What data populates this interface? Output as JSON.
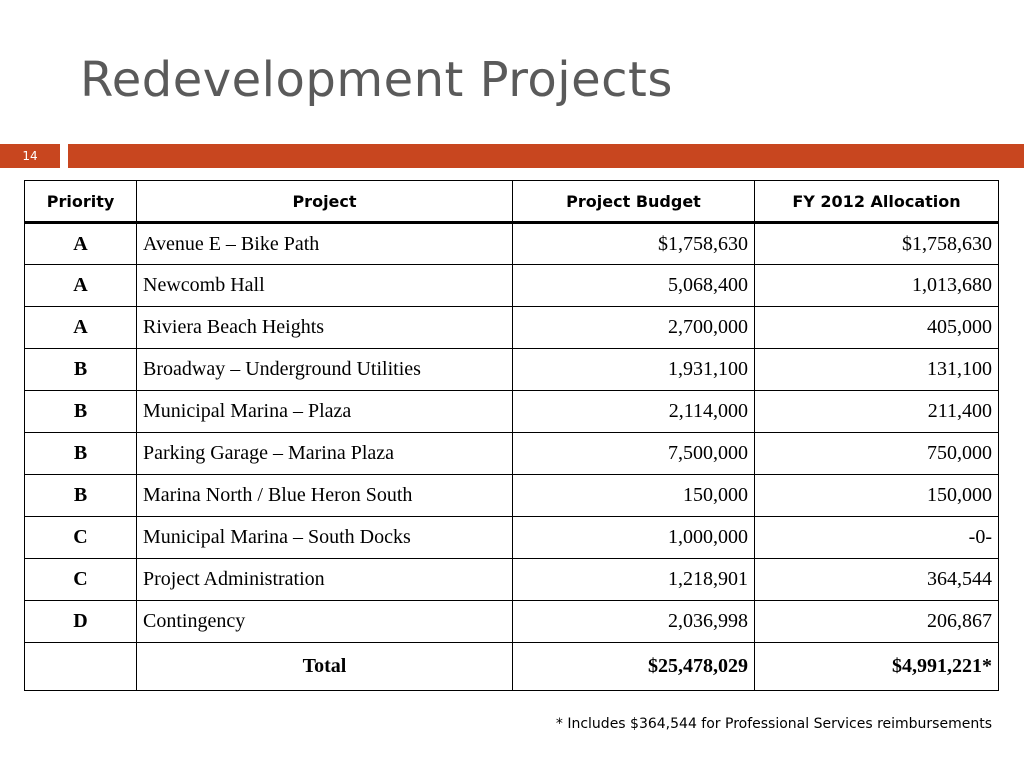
{
  "slide": {
    "title": "Redevelopment Projects",
    "number": "14",
    "accent_color": "#c8461f"
  },
  "table": {
    "headers": {
      "priority": "Priority",
      "project": "Project",
      "budget": "Project Budget",
      "allocation": "FY 2012 Allocation"
    },
    "rows": [
      {
        "priority": "A",
        "project": "Avenue E – Bike Path",
        "budget": "$1,758,630",
        "allocation": "$1,758,630"
      },
      {
        "priority": "A",
        "project": "Newcomb Hall",
        "budget": "5,068,400",
        "allocation": "1,013,680"
      },
      {
        "priority": "A",
        "project": "Riviera Beach Heights",
        "budget": "2,700,000",
        "allocation": "405,000"
      },
      {
        "priority": "B",
        "project": "Broadway – Underground Utilities",
        "budget": "1,931,100",
        "allocation": "131,100"
      },
      {
        "priority": "B",
        "project": "Municipal Marina – Plaza",
        "budget": "2,114,000",
        "allocation": "211,400"
      },
      {
        "priority": "B",
        "project": "Parking Garage – Marina Plaza",
        "budget": "7,500,000",
        "allocation": "750,000"
      },
      {
        "priority": "B",
        "project": "Marina North / Blue Heron South",
        "budget": "150,000",
        "allocation": "150,000"
      },
      {
        "priority": "C",
        "project": "Municipal Marina – South Docks",
        "budget": "1,000,000",
        "allocation": "-0-"
      },
      {
        "priority": "C",
        "project": "Project Administration",
        "budget": "1,218,901",
        "allocation": "364,544"
      },
      {
        "priority": "D",
        "project": "Contingency",
        "budget": "2,036,998",
        "allocation": "206,867"
      }
    ],
    "total": {
      "label": "Total",
      "budget": "$25,478,029",
      "allocation": "$4,991,221*"
    }
  },
  "footnote": "* Includes $364,544 for Professional Services reimbursements"
}
